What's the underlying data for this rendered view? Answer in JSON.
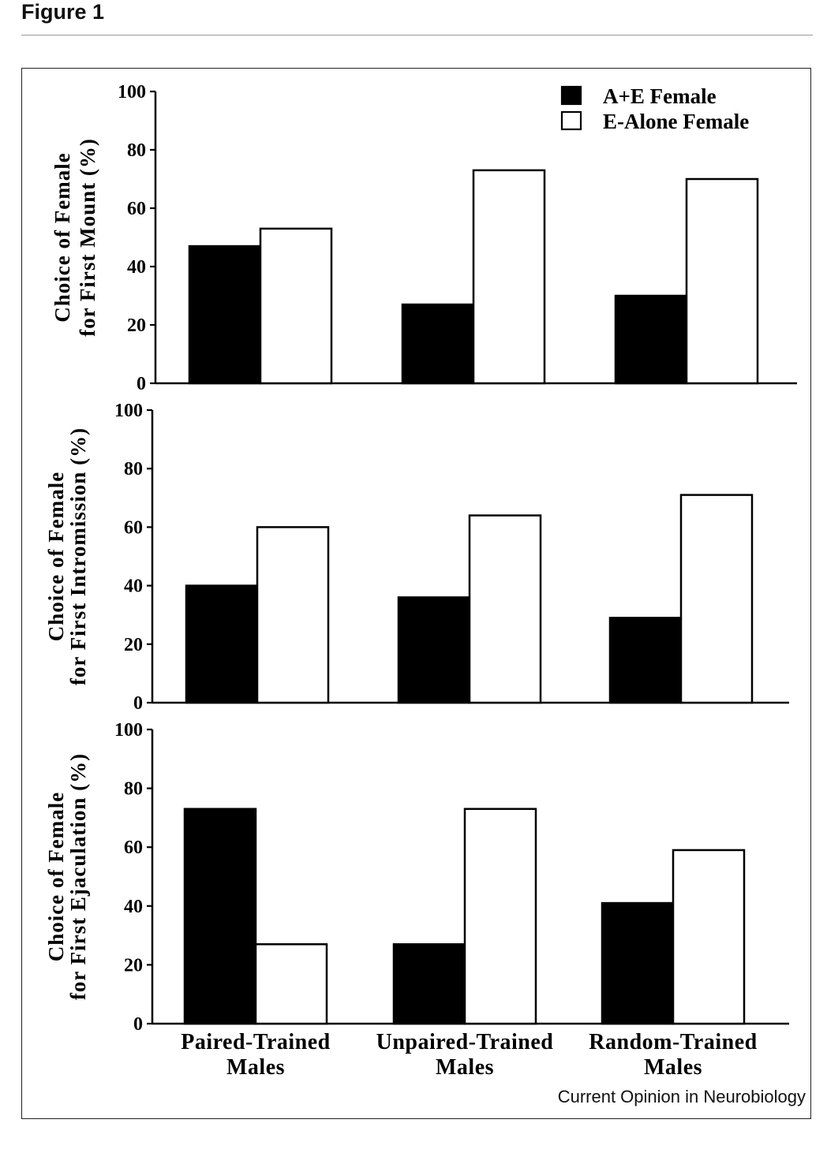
{
  "figure_title": "Figure 1",
  "credit": "Current Opinion in Neurobiology",
  "colors": {
    "series_a": "#000000",
    "series_b": "#ffffff",
    "axis": "#000000"
  },
  "chart_data": [
    {
      "type": "bar",
      "ylabel": [
        "Choice of Female",
        "for First Mount (%)"
      ],
      "ylim": [
        0,
        100
      ],
      "yticks": [
        "0",
        "20",
        "40",
        "60",
        "80",
        "100"
      ],
      "categories": [
        "Paired-Trained Males",
        "Unpaired-Trained Males",
        "Random-Trained Males"
      ],
      "series": [
        {
          "name": "A+E Female",
          "values": [
            47,
            27,
            30
          ]
        },
        {
          "name": "E-Alone Female",
          "values": [
            53,
            73,
            70
          ]
        }
      ],
      "legend": "top-right"
    },
    {
      "type": "bar",
      "ylabel": [
        "Choice of Female",
        "for First Intromission (%)"
      ],
      "ylim": [
        0,
        100
      ],
      "yticks": [
        "0",
        "20",
        "40",
        "60",
        "80",
        "100"
      ],
      "categories": [
        "Paired-Trained Males",
        "Unpaired-Trained Males",
        "Random-Trained Males"
      ],
      "series": [
        {
          "name": "A+E Female",
          "values": [
            40,
            36,
            29
          ]
        },
        {
          "name": "E-Alone Female",
          "values": [
            60,
            64,
            71
          ]
        }
      ]
    },
    {
      "type": "bar",
      "ylabel": [
        "Choice of Female",
        "for First Ejaculation (%)"
      ],
      "ylim": [
        0,
        100
      ],
      "yticks": [
        "0",
        "20",
        "40",
        "60",
        "80",
        "100"
      ],
      "categories": [
        "Paired-Trained Males",
        "Unpaired-Trained Males",
        "Random-Trained Males"
      ],
      "xticklabels": [
        [
          "Paired-Trained",
          "Males"
        ],
        [
          "Unpaired-Trained",
          "Males"
        ],
        [
          "Random-Trained",
          "Males"
        ]
      ],
      "series": [
        {
          "name": "A+E Female",
          "values": [
            73,
            27,
            41
          ]
        },
        {
          "name": "E-Alone Female",
          "values": [
            27,
            73,
            59
          ]
        }
      ]
    }
  ]
}
